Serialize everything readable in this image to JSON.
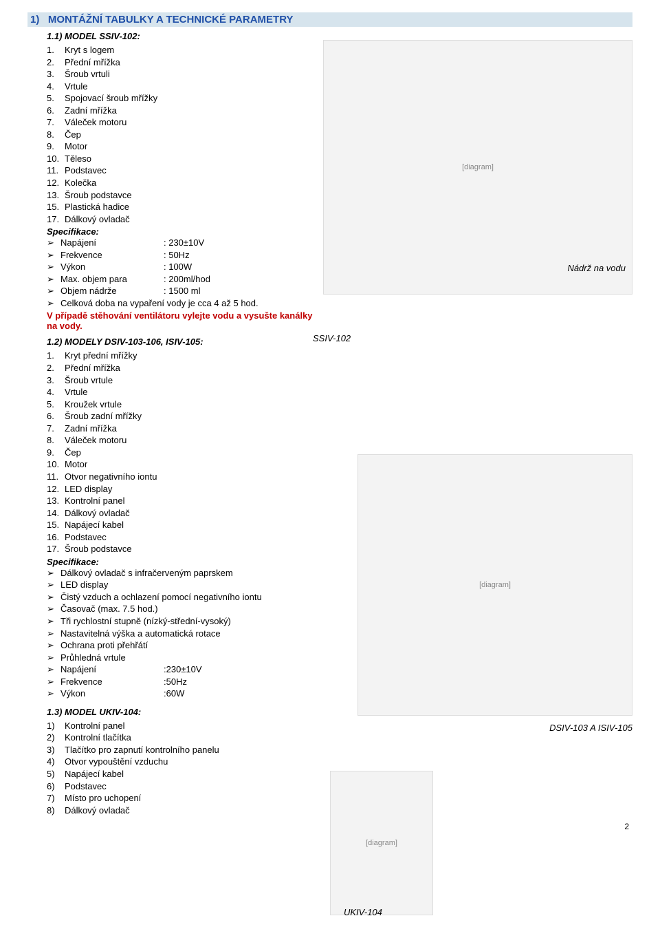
{
  "heading": "1)   MONTÁŽNÍ TABULKY A TECHNICKÉ PARAMETRY",
  "section1": {
    "title": "1.1) MODEL SSIV-102:",
    "items": [
      "Kryt s logem",
      "Přední mřížka",
      "Šroub vrtuli",
      "Vrtule",
      "Spojovací šroub mřížky",
      "Zadní mřížka",
      "Váleček motoru",
      "Čep",
      "Motor",
      "Těleso",
      "Podstavec",
      "Kolečka",
      "Šroub podstavce",
      "Plastická hadice",
      "Dálkový ovladač"
    ],
    "item_numbers": [
      "1.",
      "2.",
      "3.",
      "4.",
      "5.",
      "6.",
      "7.",
      "8.",
      "9.",
      "10.",
      "11.",
      "12.",
      "13.",
      "15.",
      "17."
    ],
    "spec_label": "Specifikace:",
    "specs": [
      {
        "k": "Napájení",
        "v": ": 230±10V"
      },
      {
        "k": "Frekvence",
        "v": ": 50Hz"
      },
      {
        "k": "Výkon",
        "v": ": 100W"
      },
      {
        "k": "Max. objem para",
        "v": ": 200ml/hod"
      },
      {
        "k": "Objem nádrže",
        "v": ": 1500 ml"
      },
      {
        "k": "Celková doba na vypaření vody je cca 4 až 5 hod.",
        "v": ""
      }
    ],
    "warn": "V případě stěhování ventilátoru vylejte vodu a vysušte kanálky na vody.",
    "tank_caption": "Nádrž na vodu",
    "model_caption": "SSIV-102"
  },
  "section2": {
    "title": "1.2) MODELY DSIV-103-106, ISIV-105:",
    "items": [
      "Kryt přední mřížky",
      "Přední mřížka",
      "Šroub vrtule",
      "Vrtule",
      "Kroužek vrtule",
      "Šroub zadní mřížky",
      "Zadní mřížka",
      "Váleček motoru",
      "Čep",
      "Motor",
      "Otvor negativního iontu",
      "LED display",
      "Kontrolní panel",
      "Dálkový ovladač",
      "Napájecí kabel",
      "Podstavec",
      "Šroub podstavce"
    ],
    "spec_label": "Specifikace:",
    "features": [
      "Dálkový ovladač s infračerveným paprskem",
      "LED display",
      "Čistý vzduch a ochlazení pomocí negativního iontu",
      "Časovač (max. 7.5 hod.)",
      "Tři rychlostní stupně (nízký-střední-vysoký)",
      "Nastavitelná výška a automatická rotace",
      "Ochrana proti přehřátí",
      "Průhledná vrtule"
    ],
    "specs": [
      {
        "k": "Napájení",
        "v": ":230±10V"
      },
      {
        "k": "Frekvence",
        "v": ":50Hz"
      },
      {
        "k": "Výkon",
        "v": ":60W"
      }
    ],
    "model_caption": "DSIV-103 A ISIV-105"
  },
  "section3": {
    "title": "1.3) MODEL UKIV-104:",
    "items": [
      "Kontrolní panel",
      "Kontrolní tlačítka",
      "Tlačítko pro zapnutí kontrolního panelu",
      "Otvor vypouštění vzduchu",
      "Napájecí kabel",
      "Podstavec",
      "Místo pro uchopení",
      "Dálkový ovladač"
    ],
    "model_caption": "UKIV-104"
  },
  "page_number": "2",
  "fig_placeholder": "[diagram]"
}
